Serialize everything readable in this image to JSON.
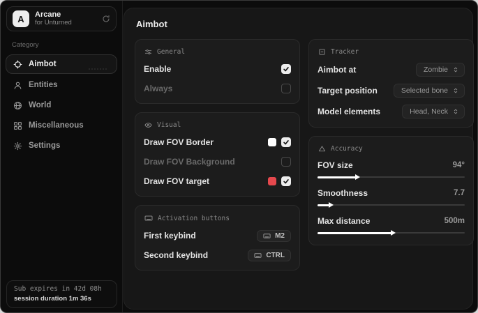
{
  "app": {
    "name": "Arcane",
    "subtitle": "for Unturned",
    "logo_letter": "A"
  },
  "sidebar": {
    "category_label": "Category",
    "items": [
      {
        "label": "Aimbot",
        "icon": "crosshair-icon",
        "selected": true
      },
      {
        "label": "Entities",
        "icon": "entities-icon",
        "selected": false
      },
      {
        "label": "World",
        "icon": "globe-icon",
        "selected": false
      },
      {
        "label": "Miscellaneous",
        "icon": "grid-icon",
        "selected": false
      },
      {
        "label": "Settings",
        "icon": "gear-icon",
        "selected": false
      }
    ],
    "footer": {
      "subscription": "Sub expires in 42d 08h",
      "session": "session duration 1m 36s"
    }
  },
  "main": {
    "title": "Aimbot",
    "general": {
      "header": "General",
      "rows": [
        {
          "label": "Enable",
          "checked": true
        },
        {
          "label": "Always",
          "checked": false,
          "disabled": true
        }
      ]
    },
    "visual": {
      "header": "Visual",
      "rows": [
        {
          "label": "Draw FOV Border",
          "swatch": "#ffffff",
          "checked": true
        },
        {
          "label": "Draw FOV Background",
          "checked": false,
          "disabled": true
        },
        {
          "label": "Draw FOV target",
          "swatch": "#e5484d",
          "checked": true
        }
      ]
    },
    "activation": {
      "header": "Activation buttons",
      "rows": [
        {
          "label": "First keybind",
          "key": "M2"
        },
        {
          "label": "Second keybind",
          "key": "CTRL"
        }
      ]
    },
    "tracker": {
      "header": "Tracker",
      "rows": [
        {
          "label": "Aimbot at",
          "value": "Zombie"
        },
        {
          "label": "Target position",
          "value": "Selected bone"
        },
        {
          "label": "Model elements",
          "value": "Head, Neck"
        }
      ]
    },
    "accuracy": {
      "header": "Accuracy",
      "rows": [
        {
          "label": "FOV size",
          "value": "94°",
          "percent": 26
        },
        {
          "label": "Smoothness",
          "value": "7.7",
          "percent": 8
        },
        {
          "label": "Max distance",
          "value": "500m",
          "percent": 50
        }
      ]
    }
  },
  "colors": {
    "accent_red": "#e5484d",
    "swatch_white": "#ffffff"
  }
}
